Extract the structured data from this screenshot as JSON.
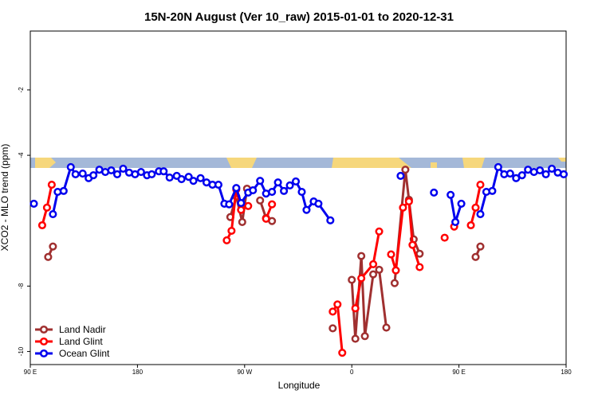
{
  "chart_data": {
    "type": "line",
    "title": "15N-20N August (Ver 10_raw)   2015-01-01 to 2020-12-31",
    "xlabel": "Longitude",
    "ylabel": "XCO2 - MLO trend (ppm)",
    "xlim": [
      90,
      540
    ],
    "ylim": [
      -10.4,
      -0.2
    ],
    "xticks": [
      {
        "value": 90,
        "label": "90 E"
      },
      {
        "value": 180,
        "label": "180"
      },
      {
        "value": 270,
        "label": "90 W"
      },
      {
        "value": 360,
        "label": "0"
      },
      {
        "value": 450,
        "label": "90 E"
      },
      {
        "value": 540,
        "label": "180"
      }
    ],
    "yticks": [
      -10,
      -8,
      -4,
      -2
    ],
    "legend": "bottom-left",
    "series": [
      {
        "name": "Land Nadir",
        "color": "#a03030",
        "x": [
          105,
          109,
          null,
          258,
          263,
          268,
          272,
          null,
          283,
          288,
          293,
          null,
          344,
          null,
          360,
          363,
          368,
          371,
          378,
          383,
          389,
          null,
          396,
          405,
          408,
          412,
          417,
          null,
          464,
          468
        ],
        "values": [
          -7.11,
          -6.79,
          null,
          -5.89,
          -5.26,
          -6.04,
          -5.02,
          null,
          -5.38,
          -5.92,
          -6.01,
          null,
          -9.29,
          null,
          -7.81,
          -9.61,
          -7.08,
          -9.53,
          -7.64,
          -7.5,
          -9.27,
          null,
          -7.91,
          -4.44,
          -5.36,
          -6.57,
          -7.01,
          null,
          -7.11,
          -6.79
        ]
      },
      {
        "name": "Land Glint",
        "color": "#ff0000",
        "x": [
          100,
          104,
          108,
          null,
          255,
          259,
          263,
          267,
          273,
          null,
          288,
          293,
          null,
          344,
          348,
          352,
          null,
          363,
          368,
          378,
          383,
          null,
          393,
          397,
          403,
          408,
          411,
          417,
          null,
          438,
          null,
          446,
          null,
          460,
          464,
          468
        ],
        "values": [
          -6.14,
          -5.6,
          -4.9,
          null,
          -6.6,
          -6.31,
          -5.04,
          -5.67,
          -5.55,
          null,
          -5.94,
          -5.5,
          null,
          -8.78,
          -8.56,
          -10.04,
          null,
          -8.68,
          -7.76,
          -7.33,
          -6.33,
          null,
          -7.03,
          -7.52,
          -5.6,
          -5.41,
          -6.74,
          -7.42,
          null,
          -6.52,
          null,
          -6.18,
          null,
          -6.14,
          -5.6,
          -4.9
        ]
      },
      {
        "name": "Ocean Glint",
        "color": "#0000ee",
        "x": [
          93,
          null,
          109,
          113,
          118,
          124,
          128,
          134,
          139,
          143,
          148,
          153,
          158,
          163,
          168,
          173,
          178,
          183,
          188,
          192,
          198,
          202,
          207,
          213,
          217,
          223,
          227,
          233,
          238,
          243,
          248,
          253,
          257,
          263,
          267,
          273,
          277,
          283,
          288,
          293,
          298,
          303,
          308,
          313,
          318,
          322,
          328,
          332,
          342,
          null,
          401,
          null,
          429,
          null,
          443,
          447,
          452,
          null,
          468,
          473,
          478,
          483,
          488,
          493,
          498,
          503,
          508,
          513,
          518,
          523,
          528,
          533,
          538
        ],
        "values": [
          -5.48,
          null,
          -5.8,
          -5.12,
          -5.09,
          -4.36,
          -4.58,
          -4.56,
          -4.7,
          -4.61,
          -4.44,
          -4.51,
          -4.46,
          -4.58,
          -4.41,
          -4.53,
          -4.58,
          -4.51,
          -4.61,
          -4.58,
          -4.49,
          -4.49,
          -4.68,
          -4.63,
          -4.73,
          -4.66,
          -4.78,
          -4.7,
          -4.83,
          -4.9,
          -4.9,
          -5.48,
          -5.5,
          -5.0,
          -5.46,
          -5.14,
          -5.07,
          -4.78,
          -5.17,
          -5.12,
          -4.83,
          -5.09,
          -4.92,
          -4.8,
          -5.12,
          -5.67,
          -5.41,
          -5.48,
          -5.99,
          null,
          -4.63,
          null,
          -5.14,
          null,
          -5.21,
          -6.04,
          -5.48,
          null,
          -5.8,
          -5.12,
          -5.09,
          -4.36,
          -4.58,
          -4.56,
          -4.7,
          -4.61,
          -4.44,
          -4.51,
          -4.46,
          -4.58,
          -4.41,
          -4.53,
          -4.58
        ]
      }
    ]
  }
}
